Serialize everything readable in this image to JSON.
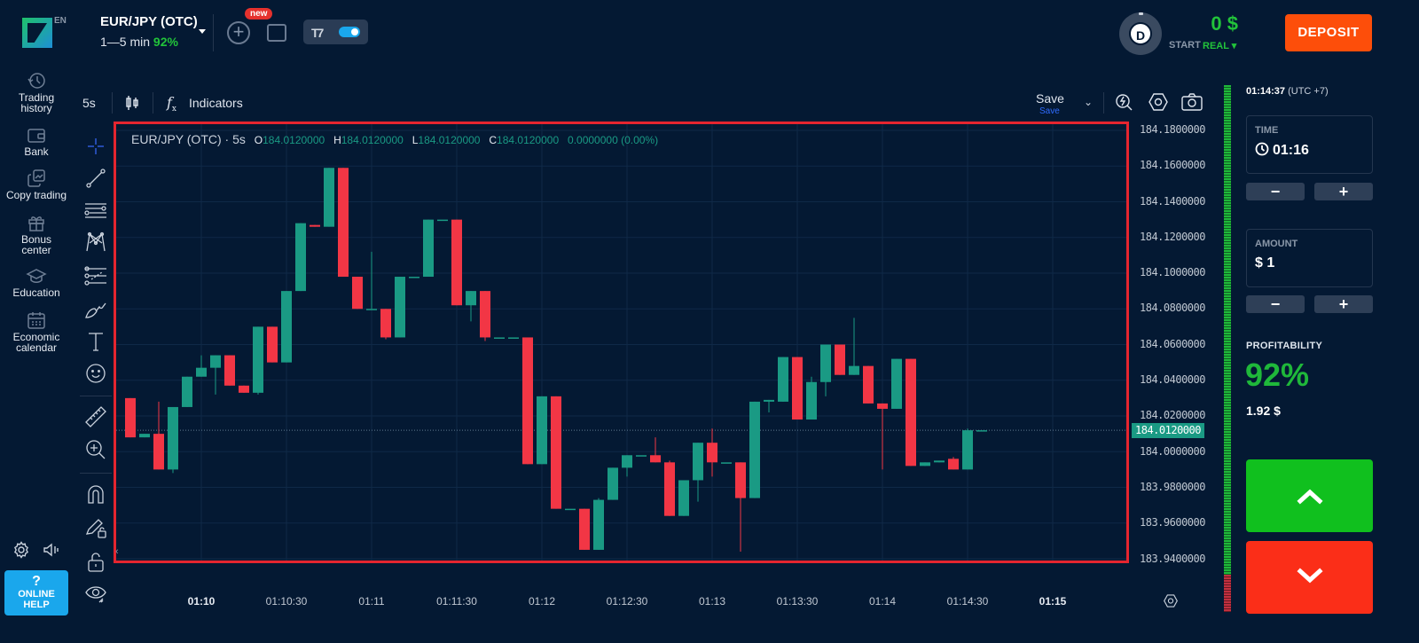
{
  "header": {
    "lang": "EN",
    "asset": {
      "name": "EUR/JPY (OTC)",
      "duration": "1—5 min",
      "payout": "92%"
    },
    "new_badge": "new",
    "account": {
      "avatar_letter": "D",
      "balance": "0 $",
      "start_label": "START",
      "real_label": "REAL ▾"
    },
    "deposit_label": "DEPOSIT"
  },
  "sidebar": {
    "items": [
      {
        "label_1": "Trading",
        "label_2": "history",
        "icon": "history-icon"
      },
      {
        "label_1": "Bank",
        "label_2": "",
        "icon": "wallet-icon"
      },
      {
        "label_1": "Copy trading",
        "label_2": "",
        "icon": "copy-trading-icon"
      },
      {
        "label_1": "Bonus",
        "label_2": "center",
        "icon": "gift-icon"
      },
      {
        "label_1": "Education",
        "label_2": "",
        "icon": "graduation-cap-icon"
      },
      {
        "label_1": "Economic",
        "label_2": "calendar",
        "icon": "calendar-icon"
      }
    ],
    "help": {
      "q": "?",
      "line1": "ONLINE",
      "line2": "HELP"
    }
  },
  "chart_toolbar": {
    "interval": "5s",
    "fx": "f",
    "indicators_label": "Indicators",
    "save_label": "Save",
    "save_sub": "Save"
  },
  "chart": {
    "legend": {
      "title": "EUR/JPY (OTC) · 5s",
      "o_key": "O",
      "o": "184.0120000",
      "h_key": "H",
      "h": "184.0120000",
      "l_key": "L",
      "l": "184.0120000",
      "c_key": "C",
      "c": "184.0120000",
      "change": "0.0000000 (0.00%)"
    },
    "current_price": "184.0120000",
    "price_ticks": [
      "184.1800000",
      "184.1600000",
      "184.1400000",
      "184.1200000",
      "184.1000000",
      "184.0800000",
      "184.0600000",
      "184.0400000",
      "184.0200000",
      "184.0000000",
      "183.9800000",
      "183.9600000",
      "183.9400000"
    ],
    "time_ticks": [
      "01:10",
      "01:10:30",
      "01:11",
      "01:11:30",
      "01:12",
      "01:12:30",
      "01:13",
      "01:13:30",
      "01:14",
      "01:14:30",
      "01:15"
    ],
    "colors": {
      "up": "#1a9a84",
      "down": "#f23645",
      "grid": "#0f2947"
    }
  },
  "right_panel": {
    "clock": "01:14:37",
    "timezone": "(UTC +7)",
    "time": {
      "label": "TIME",
      "value": "01:16",
      "minus": "−",
      "plus": "+"
    },
    "amount": {
      "label": "AMOUNT",
      "value": "$ 1",
      "minus": "−",
      "plus": "+"
    },
    "profitability": {
      "label": "PROFITABILITY",
      "percent": "92%",
      "amount": "1.92 $"
    }
  },
  "chart_data": {
    "type": "candlestick",
    "title": "EUR/JPY (OTC) · 5s",
    "ylim": [
      183.94,
      184.18
    ],
    "candles": [
      {
        "o": 184.03,
        "c": 184.008,
        "h": 184.03,
        "l": 184.008
      },
      {
        "o": 184.008,
        "c": 184.01,
        "h": 184.01,
        "l": 184.008
      },
      {
        "o": 184.01,
        "c": 183.99,
        "h": 184.028,
        "l": 183.99
      },
      {
        "o": 183.99,
        "c": 184.025,
        "h": 184.025,
        "l": 183.988
      },
      {
        "o": 184.025,
        "c": 184.042,
        "h": 184.042,
        "l": 184.025
      },
      {
        "o": 184.042,
        "c": 184.047,
        "h": 184.054,
        "l": 184.042
      },
      {
        "o": 184.047,
        "c": 184.054,
        "h": 184.054,
        "l": 184.032
      },
      {
        "o": 184.054,
        "c": 184.037,
        "h": 184.054,
        "l": 184.037
      },
      {
        "o": 184.037,
        "c": 184.033,
        "h": 184.037,
        "l": 184.033
      },
      {
        "o": 184.033,
        "c": 184.07,
        "h": 184.07,
        "l": 184.032
      },
      {
        "o": 184.07,
        "c": 184.05,
        "h": 184.07,
        "l": 184.05
      },
      {
        "o": 184.05,
        "c": 184.09,
        "h": 184.09,
        "l": 184.05
      },
      {
        "o": 184.09,
        "c": 184.128,
        "h": 184.128,
        "l": 184.09
      },
      {
        "o": 184.127,
        "c": 184.126,
        "h": 184.127,
        "l": 184.126
      },
      {
        "o": 184.126,
        "c": 184.159,
        "h": 184.159,
        "l": 184.126
      },
      {
        "o": 184.159,
        "c": 184.098,
        "h": 184.159,
        "l": 184.098
      },
      {
        "o": 184.098,
        "c": 184.08,
        "h": 184.098,
        "l": 184.08
      },
      {
        "o": 184.08,
        "c": 184.08,
        "h": 184.112,
        "l": 184.08
      },
      {
        "o": 184.08,
        "c": 184.064,
        "h": 184.08,
        "l": 184.063
      },
      {
        "o": 184.064,
        "c": 184.098,
        "h": 184.098,
        "l": 184.064
      },
      {
        "o": 184.098,
        "c": 184.098,
        "h": 184.098,
        "l": 184.098
      },
      {
        "o": 184.098,
        "c": 184.13,
        "h": 184.13,
        "l": 184.098
      },
      {
        "o": 184.13,
        "c": 184.13,
        "h": 184.13,
        "l": 184.13
      },
      {
        "o": 184.13,
        "c": 184.082,
        "h": 184.13,
        "l": 184.082
      },
      {
        "o": 184.082,
        "c": 184.09,
        "h": 184.09,
        "l": 184.073
      },
      {
        "o": 184.09,
        "c": 184.064,
        "h": 184.09,
        "l": 184.062
      },
      {
        "o": 184.064,
        "c": 184.064,
        "h": 184.064,
        "l": 184.064
      },
      {
        "o": 184.064,
        "c": 184.064,
        "h": 184.064,
        "l": 184.064
      },
      {
        "o": 184.064,
        "c": 183.993,
        "h": 184.064,
        "l": 183.993
      },
      {
        "o": 183.993,
        "c": 184.031,
        "h": 184.031,
        "l": 183.993
      },
      {
        "o": 184.031,
        "c": 183.968,
        "h": 184.031,
        "l": 183.968
      },
      {
        "o": 183.968,
        "c": 183.968,
        "h": 183.968,
        "l": 183.968
      },
      {
        "o": 183.968,
        "c": 183.945,
        "h": 183.968,
        "l": 183.945
      },
      {
        "o": 183.945,
        "c": 183.973,
        "h": 183.974,
        "l": 183.945
      },
      {
        "o": 183.973,
        "c": 183.991,
        "h": 183.991,
        "l": 183.973
      },
      {
        "o": 183.991,
        "c": 183.998,
        "h": 183.998,
        "l": 183.986
      },
      {
        "o": 183.998,
        "c": 183.998,
        "h": 183.998,
        "l": 183.998
      },
      {
        "o": 183.998,
        "c": 183.994,
        "h": 184.008,
        "l": 183.994
      },
      {
        "o": 183.994,
        "c": 183.964,
        "h": 183.995,
        "l": 183.964
      },
      {
        "o": 183.964,
        "c": 183.984,
        "h": 183.984,
        "l": 183.964
      },
      {
        "o": 183.984,
        "c": 184.005,
        "h": 184.005,
        "l": 183.972
      },
      {
        "o": 184.005,
        "c": 183.994,
        "h": 184.013,
        "l": 183.986
      },
      {
        "o": 183.994,
        "c": 183.994,
        "h": 183.994,
        "l": 183.994
      },
      {
        "o": 183.994,
        "c": 183.974,
        "h": 183.994,
        "l": 183.944
      },
      {
        "o": 183.974,
        "c": 184.028,
        "h": 184.028,
        "l": 183.974
      },
      {
        "o": 184.028,
        "c": 184.029,
        "h": 184.029,
        "l": 184.022
      },
      {
        "o": 184.028,
        "c": 184.053,
        "h": 184.053,
        "l": 184.028
      },
      {
        "o": 184.053,
        "c": 184.018,
        "h": 184.053,
        "l": 184.018
      },
      {
        "o": 184.018,
        "c": 184.039,
        "h": 184.042,
        "l": 184.018
      },
      {
        "o": 184.039,
        "c": 184.06,
        "h": 184.06,
        "l": 184.031
      },
      {
        "o": 184.06,
        "c": 184.043,
        "h": 184.06,
        "l": 184.043
      },
      {
        "o": 184.043,
        "c": 184.048,
        "h": 184.075,
        "l": 184.043
      },
      {
        "o": 184.048,
        "c": 184.027,
        "h": 184.048,
        "l": 184.027
      },
      {
        "o": 184.027,
        "c": 184.024,
        "h": 184.027,
        "l": 183.99
      },
      {
        "o": 184.024,
        "c": 184.052,
        "h": 184.052,
        "l": 184.024
      },
      {
        "o": 184.052,
        "c": 183.992,
        "h": 184.052,
        "l": 183.992
      },
      {
        "o": 183.992,
        "c": 183.994,
        "h": 183.994,
        "l": 183.992
      },
      {
        "o": 183.994,
        "c": 183.995,
        "h": 183.995,
        "l": 183.994
      },
      {
        "o": 183.996,
        "c": 183.99,
        "h": 183.997,
        "l": 183.99
      },
      {
        "o": 183.99,
        "c": 184.012,
        "h": 184.013,
        "l": 183.99
      },
      {
        "o": 184.012,
        "c": 184.012,
        "h": 184.012,
        "l": 184.012
      }
    ],
    "time_ticks": [
      "01:10",
      "01:10:30",
      "01:11",
      "01:11:30",
      "01:12",
      "01:12:30",
      "01:13",
      "01:13:30",
      "01:14",
      "01:14:30",
      "01:15"
    ],
    "last_price": 184.012
  }
}
